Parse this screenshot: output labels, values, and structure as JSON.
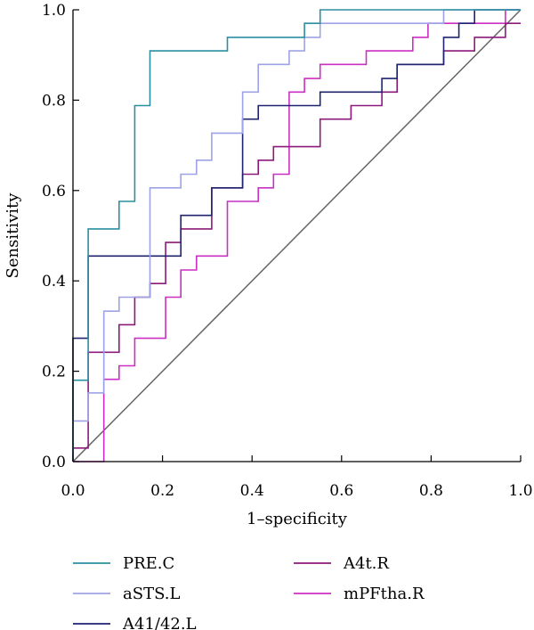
{
  "chart_data": {
    "type": "line",
    "xlabel": "1–specificity",
    "ylabel": "Sensitivity",
    "xlim": [
      0,
      1
    ],
    "ylim": [
      0,
      1
    ],
    "x_ticks": [
      "0.0",
      "0.2",
      "0.4",
      "0.6",
      "0.8",
      "1.0"
    ],
    "y_ticks": [
      "0.0",
      "0.2",
      "0.4",
      "0.6",
      "0.8",
      "1.0"
    ],
    "grid": false,
    "legend": "bottom",
    "reference_line": {
      "color": "#666666",
      "points": [
        [
          0,
          0
        ],
        [
          1,
          1
        ]
      ]
    },
    "series": [
      {
        "name": "PRE.C",
        "color": "#2a8fa0",
        "points": [
          [
            0,
            0
          ],
          [
            0,
            0.18
          ],
          [
            0.034,
            0.18
          ],
          [
            0.034,
            0.515
          ],
          [
            0.103,
            0.515
          ],
          [
            0.103,
            0.576
          ],
          [
            0.138,
            0.576
          ],
          [
            0.138,
            0.788
          ],
          [
            0.172,
            0.788
          ],
          [
            0.172,
            0.909
          ],
          [
            0.345,
            0.909
          ],
          [
            0.345,
            0.939
          ],
          [
            0.517,
            0.939
          ],
          [
            0.517,
            0.97
          ],
          [
            0.552,
            0.97
          ],
          [
            0.552,
            1.0
          ],
          [
            1.0,
            1.0
          ]
        ]
      },
      {
        "name": "aSTS.L",
        "color": "#9ea2e6",
        "points": [
          [
            0,
            0
          ],
          [
            0,
            0.09
          ],
          [
            0.034,
            0.09
          ],
          [
            0.034,
            0.152
          ],
          [
            0.069,
            0.152
          ],
          [
            0.069,
            0.333
          ],
          [
            0.103,
            0.333
          ],
          [
            0.103,
            0.364
          ],
          [
            0.172,
            0.364
          ],
          [
            0.172,
            0.606
          ],
          [
            0.241,
            0.606
          ],
          [
            0.241,
            0.636
          ],
          [
            0.276,
            0.636
          ],
          [
            0.276,
            0.667
          ],
          [
            0.31,
            0.667
          ],
          [
            0.31,
            0.727
          ],
          [
            0.379,
            0.727
          ],
          [
            0.379,
            0.818
          ],
          [
            0.414,
            0.818
          ],
          [
            0.414,
            0.879
          ],
          [
            0.483,
            0.879
          ],
          [
            0.483,
            0.909
          ],
          [
            0.517,
            0.909
          ],
          [
            0.517,
            0.939
          ],
          [
            0.552,
            0.939
          ],
          [
            0.552,
            0.97
          ],
          [
            0.828,
            0.97
          ],
          [
            0.828,
            1.0
          ],
          [
            1.0,
            1.0
          ]
        ]
      },
      {
        "name": "A41/42.L",
        "color": "#1f2370",
        "points": [
          [
            0,
            0
          ],
          [
            0,
            0.273
          ],
          [
            0.034,
            0.273
          ],
          [
            0.034,
            0.455
          ],
          [
            0.241,
            0.455
          ],
          [
            0.241,
            0.545
          ],
          [
            0.31,
            0.545
          ],
          [
            0.31,
            0.606
          ],
          [
            0.379,
            0.606
          ],
          [
            0.379,
            0.758
          ],
          [
            0.414,
            0.758
          ],
          [
            0.414,
            0.788
          ],
          [
            0.552,
            0.788
          ],
          [
            0.552,
            0.818
          ],
          [
            0.69,
            0.818
          ],
          [
            0.69,
            0.848
          ],
          [
            0.724,
            0.848
          ],
          [
            0.724,
            0.879
          ],
          [
            0.828,
            0.879
          ],
          [
            0.828,
            0.939
          ],
          [
            0.862,
            0.939
          ],
          [
            0.862,
            0.97
          ],
          [
            0.897,
            0.97
          ],
          [
            0.897,
            1.0
          ],
          [
            1.0,
            1.0
          ]
        ]
      },
      {
        "name": "A4t.R",
        "color": "#8b1a7a",
        "points": [
          [
            0,
            0
          ],
          [
            0,
            0.03
          ],
          [
            0.034,
            0.03
          ],
          [
            0.034,
            0.242
          ],
          [
            0.103,
            0.242
          ],
          [
            0.103,
            0.303
          ],
          [
            0.138,
            0.303
          ],
          [
            0.138,
            0.364
          ],
          [
            0.172,
            0.364
          ],
          [
            0.172,
            0.394
          ],
          [
            0.207,
            0.394
          ],
          [
            0.207,
            0.485
          ],
          [
            0.241,
            0.485
          ],
          [
            0.241,
            0.515
          ],
          [
            0.31,
            0.515
          ],
          [
            0.31,
            0.606
          ],
          [
            0.379,
            0.606
          ],
          [
            0.379,
            0.636
          ],
          [
            0.414,
            0.636
          ],
          [
            0.414,
            0.667
          ],
          [
            0.448,
            0.667
          ],
          [
            0.448,
            0.697
          ],
          [
            0.552,
            0.697
          ],
          [
            0.552,
            0.758
          ],
          [
            0.621,
            0.758
          ],
          [
            0.621,
            0.788
          ],
          [
            0.69,
            0.788
          ],
          [
            0.69,
            0.818
          ],
          [
            0.724,
            0.818
          ],
          [
            0.724,
            0.879
          ],
          [
            0.828,
            0.879
          ],
          [
            0.828,
            0.909
          ],
          [
            0.897,
            0.909
          ],
          [
            0.897,
            0.939
          ],
          [
            0.966,
            0.939
          ],
          [
            0.966,
            0.97
          ],
          [
            1.0,
            0.97
          ]
        ]
      },
      {
        "name": "mPFtha.R",
        "color": "#cc2fc4",
        "points": [
          [
            0,
            0
          ],
          [
            0.069,
            0
          ],
          [
            0.069,
            0.182
          ],
          [
            0.103,
            0.182
          ],
          [
            0.103,
            0.212
          ],
          [
            0.138,
            0.212
          ],
          [
            0.138,
            0.273
          ],
          [
            0.207,
            0.273
          ],
          [
            0.207,
            0.364
          ],
          [
            0.241,
            0.364
          ],
          [
            0.241,
            0.424
          ],
          [
            0.276,
            0.424
          ],
          [
            0.276,
            0.455
          ],
          [
            0.345,
            0.455
          ],
          [
            0.345,
            0.576
          ],
          [
            0.414,
            0.576
          ],
          [
            0.414,
            0.606
          ],
          [
            0.448,
            0.606
          ],
          [
            0.448,
            0.636
          ],
          [
            0.483,
            0.636
          ],
          [
            0.483,
            0.818
          ],
          [
            0.517,
            0.818
          ],
          [
            0.517,
            0.848
          ],
          [
            0.552,
            0.848
          ],
          [
            0.552,
            0.879
          ],
          [
            0.655,
            0.879
          ],
          [
            0.655,
            0.909
          ],
          [
            0.759,
            0.909
          ],
          [
            0.759,
            0.939
          ],
          [
            0.793,
            0.939
          ],
          [
            0.793,
            0.97
          ],
          [
            0.966,
            0.97
          ],
          [
            0.966,
            1.0
          ],
          [
            1.0,
            1.0
          ]
        ]
      }
    ]
  }
}
